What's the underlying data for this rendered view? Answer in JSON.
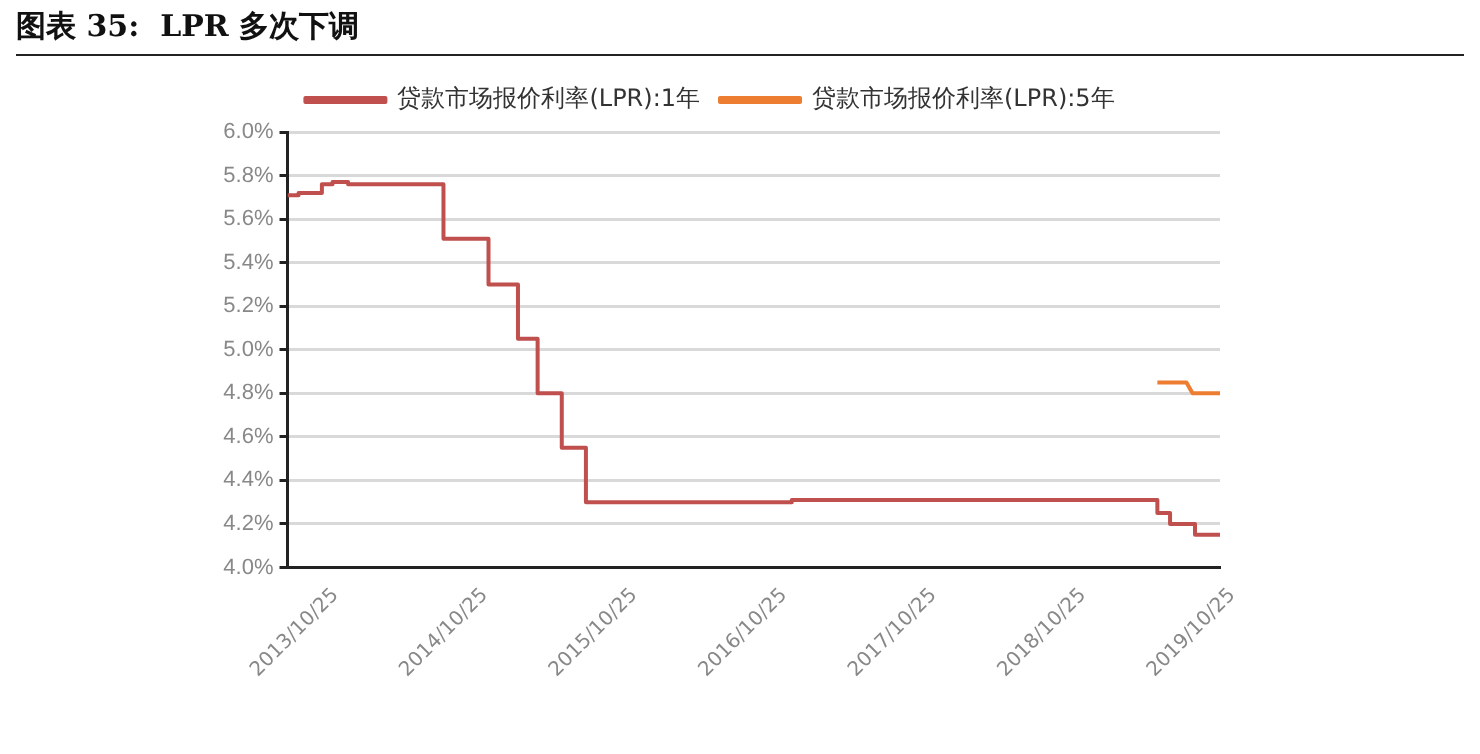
{
  "chart_data": {
    "type": "step",
    "title": "图表 35:  LPR 多次下调",
    "x": [
      "2013-10-25",
      "2013-11-21",
      "2014-01-17",
      "2014-02-12",
      "2014-03-22",
      "2014-11-10",
      "2015-02-28",
      "2015-05-11",
      "2015-06-28",
      "2015-08-26",
      "2015-10-24",
      "2017-03-10",
      "2019-08-20",
      "2019-09-20",
      "2019-11-20",
      "2020-01-20"
    ],
    "series": [
      {
        "name": "贷款市场报价利率(LPR):1年",
        "color": "#c0504d",
        "values": [
          5.71,
          5.72,
          5.76,
          5.77,
          5.76,
          5.51,
          5.3,
          5.05,
          4.8,
          4.55,
          4.3,
          4.31,
          4.25,
          4.2,
          4.15,
          4.15
        ]
      },
      {
        "name": "贷款市场报价利率(LPR):5年",
        "color": "#ed7d31",
        "type": "line",
        "x": [
          "2019-08-20",
          "2019-10-30",
          "2019-11-14",
          "2020-01-20"
        ],
        "values": [
          4.85,
          4.85,
          4.8,
          4.8
        ]
      }
    ],
    "xlim": [
      "2013-10-25",
      "2020-01-20"
    ],
    "xticks": [
      {
        "value": "2013-10-25",
        "label": "2013/10/25"
      },
      {
        "value": "2014-10-25",
        "label": "2014/10/25"
      },
      {
        "value": "2015-10-25",
        "label": "2015/10/25"
      },
      {
        "value": "2016-10-25",
        "label": "2016/10/25"
      },
      {
        "value": "2017-10-25",
        "label": "2017/10/25"
      },
      {
        "value": "2018-10-25",
        "label": "2018/10/25"
      },
      {
        "value": "2019-10-25",
        "label": "2019/10/25"
      }
    ],
    "ylim": [
      4.0,
      6.0
    ],
    "yticks": [
      {
        "value": 4.0,
        "label": "4.0%"
      },
      {
        "value": 4.2,
        "label": "4.2%"
      },
      {
        "value": 4.4,
        "label": "4.4%"
      },
      {
        "value": 4.6,
        "label": "4.6%"
      },
      {
        "value": 4.8,
        "label": "4.8%"
      },
      {
        "value": 5.0,
        "label": "5.0%"
      },
      {
        "value": 5.2,
        "label": "5.2%"
      },
      {
        "value": 5.4,
        "label": "5.4%"
      },
      {
        "value": 5.6,
        "label": "5.6%"
      },
      {
        "value": 5.8,
        "label": "5.8%"
      },
      {
        "value": 6.0,
        "label": "6.0%"
      }
    ],
    "grid": "y",
    "legend": "top",
    "line_style": "solid",
    "marker": "none"
  }
}
